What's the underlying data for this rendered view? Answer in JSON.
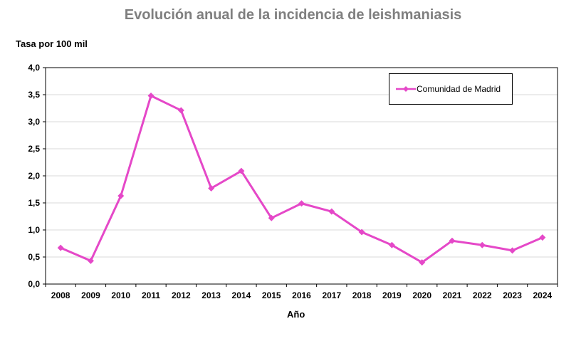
{
  "chart_data": {
    "type": "line",
    "title": "Evolución anual de la incidencia de leishmaniasis",
    "ylabel": "Tasa por 100 mil",
    "xlabel": "Año",
    "x": [
      "2008",
      "2009",
      "2010",
      "2011",
      "2012",
      "2013",
      "2014",
      "2015",
      "2016",
      "2017",
      "2018",
      "2019",
      "2020",
      "2021",
      "2022",
      "2023",
      "2024"
    ],
    "y_ticks": [
      "0,0",
      "0,5",
      "1,0",
      "1,5",
      "2,0",
      "2,5",
      "3,0",
      "3,5",
      "4,0"
    ],
    "ylim": [
      0,
      4.0
    ],
    "grid": true,
    "legend_position": "top-right",
    "series": [
      {
        "name": "Comunidad de Madrid",
        "color": "#e548c8",
        "marker": "diamond",
        "values": [
          0.67,
          0.43,
          1.63,
          3.48,
          3.21,
          1.77,
          2.09,
          1.22,
          1.49,
          1.34,
          0.96,
          0.72,
          0.4,
          0.8,
          0.72,
          0.62,
          0.86
        ]
      }
    ]
  }
}
